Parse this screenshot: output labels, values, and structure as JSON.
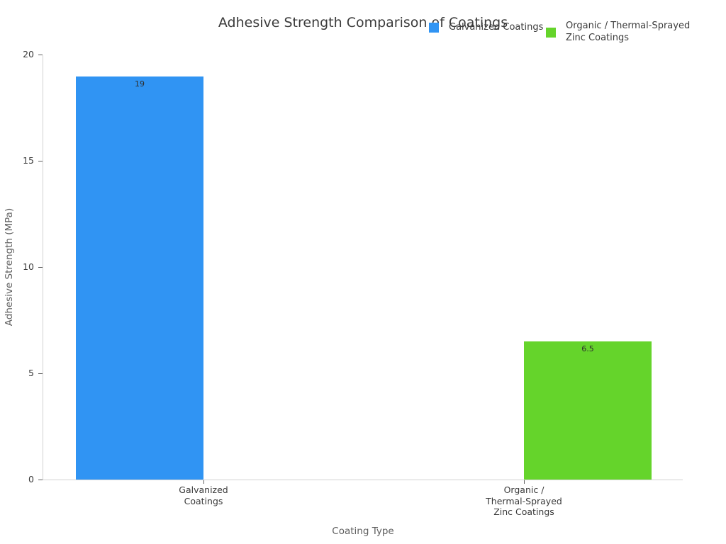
{
  "title": "Adhesive Strength Comparison of Coatings",
  "legend": {
    "items": [
      {
        "lines": [
          "Galvanized Coatings"
        ],
        "color": "#3094f3"
      },
      {
        "lines": [
          "Organic / Thermal-Sprayed",
          "Zinc Coatings"
        ],
        "color": "#65d42b"
      }
    ]
  },
  "chart_data": {
    "type": "bar",
    "title": "Adhesive Strength Comparison of Coatings",
    "xlabel": "Coating Type",
    "ylabel": "Adhesive Strength (MPa)",
    "ylim": [
      0,
      20
    ],
    "yticks": [
      0,
      5,
      10,
      15,
      20
    ],
    "ytick_labels": [
      "0",
      "5",
      "10",
      "15",
      "20"
    ],
    "grid": false,
    "legend_position": "top-center",
    "categories": [
      "Galvanized Coatings",
      "Organic / Thermal-Sprayed Zinc Coatings"
    ],
    "category_label_lines": [
      [
        "Galvanized",
        "Coatings"
      ],
      [
        "Organic /",
        "Thermal-Sprayed",
        "Zinc Coatings"
      ]
    ],
    "series": [
      {
        "name": "Galvanized Coatings",
        "color": "#3094f3",
        "values": [
          19,
          null
        ]
      },
      {
        "name": "Organic / Thermal-Sprayed Zinc Coatings",
        "color": "#65d42b",
        "values": [
          null,
          6.5
        ]
      }
    ],
    "bars": [
      {
        "category_index": 0,
        "series_index": 0,
        "value": 19,
        "value_label": "19"
      },
      {
        "category_index": 1,
        "series_index": 1,
        "value": 6.5,
        "value_label": "6.5"
      }
    ]
  }
}
